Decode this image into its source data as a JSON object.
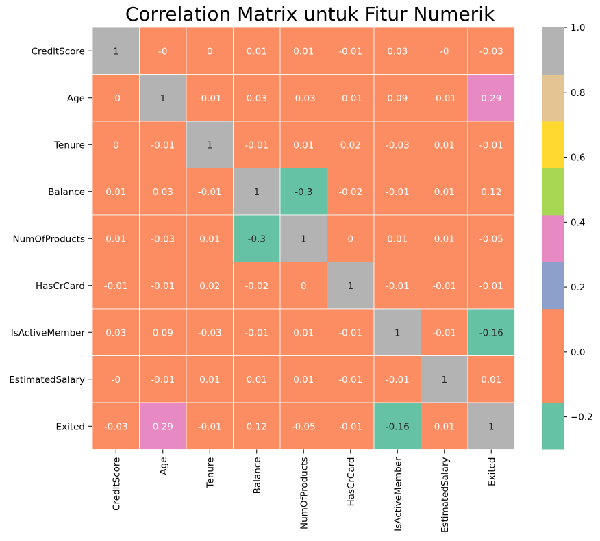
{
  "chart_data": {
    "type": "heatmap",
    "title": "Correlation Matrix untuk Fitur Numerik",
    "xlabel": "",
    "ylabel": "",
    "labels": [
      "CreditScore",
      "Age",
      "Tenure",
      "Balance",
      "NumOfProducts",
      "HasCrCard",
      "IsActiveMember",
      "EstimatedSalary",
      "Exited"
    ],
    "display": [
      [
        "1",
        "-0",
        "0",
        "0.01",
        "0.01",
        "-0.01",
        "0.03",
        "-0",
        "-0.03"
      ],
      [
        "-0",
        "1",
        "-0.01",
        "0.03",
        "-0.03",
        "-0.01",
        "0.09",
        "-0.01",
        "0.29"
      ],
      [
        "0",
        "-0.01",
        "1",
        "-0.01",
        "0.01",
        "0.02",
        "-0.03",
        "0.01",
        "-0.01"
      ],
      [
        "0.01",
        "0.03",
        "-0.01",
        "1",
        "-0.3",
        "-0.02",
        "-0.01",
        "0.01",
        "0.12"
      ],
      [
        "0.01",
        "-0.03",
        "0.01",
        "-0.3",
        "1",
        "0",
        "0.01",
        "0.01",
        "-0.05"
      ],
      [
        "-0.01",
        "-0.01",
        "0.02",
        "-0.02",
        "0",
        "1",
        "-0.01",
        "-0.01",
        "-0.01"
      ],
      [
        "0.03",
        "0.09",
        "-0.03",
        "-0.01",
        "0.01",
        "-0.01",
        "1",
        "-0.01",
        "-0.16"
      ],
      [
        "-0",
        "-0.01",
        "0.01",
        "0.01",
        "0.01",
        "-0.01",
        "-0.01",
        "1",
        "0.01"
      ],
      [
        "-0.03",
        "0.29",
        "-0.01",
        "0.12",
        "-0.05",
        "-0.01",
        "-0.16",
        "0.01",
        "1"
      ]
    ],
    "colorbar": {
      "range": [
        -0.3,
        1.0
      ],
      "ticks": [
        "−0.2",
        "0.0",
        "0.2",
        "0.4",
        "0.6",
        "0.8",
        "1.0"
      ],
      "tick_values": [
        -0.2,
        0.0,
        0.2,
        0.4,
        0.6,
        0.8,
        1.0
      ],
      "colormap": "Set2",
      "bins": [
        {
          "min": -0.3,
          "max": -0.1556,
          "color": "#66c2a5"
        },
        {
          "min": -0.1556,
          "max": -0.0111,
          "color": "#fc8d62"
        },
        {
          "min": -0.0111,
          "max": 0.1333,
          "color": "#fc8d62"
        },
        {
          "min": 0.1333,
          "max": 0.2778,
          "color": "#8da0cb"
        },
        {
          "min": 0.2778,
          "max": 0.4222,
          "color": "#e78ac3"
        },
        {
          "min": 0.4222,
          "max": 0.5667,
          "color": "#a6d854"
        },
        {
          "min": 0.5667,
          "max": 0.7111,
          "color": "#ffd92f"
        },
        {
          "min": 0.7111,
          "max": 0.8556,
          "color": "#e5c494"
        },
        {
          "min": 0.8556,
          "max": 1.0,
          "color": "#b3b3b3"
        }
      ]
    },
    "cell_colors": {
      "diagonal": "#b3b3b3",
      "blue": "#8da0cb",
      "pink": "#e78ac3",
      "green": "#66c2a5",
      "orange": "#fc8d62"
    }
  }
}
